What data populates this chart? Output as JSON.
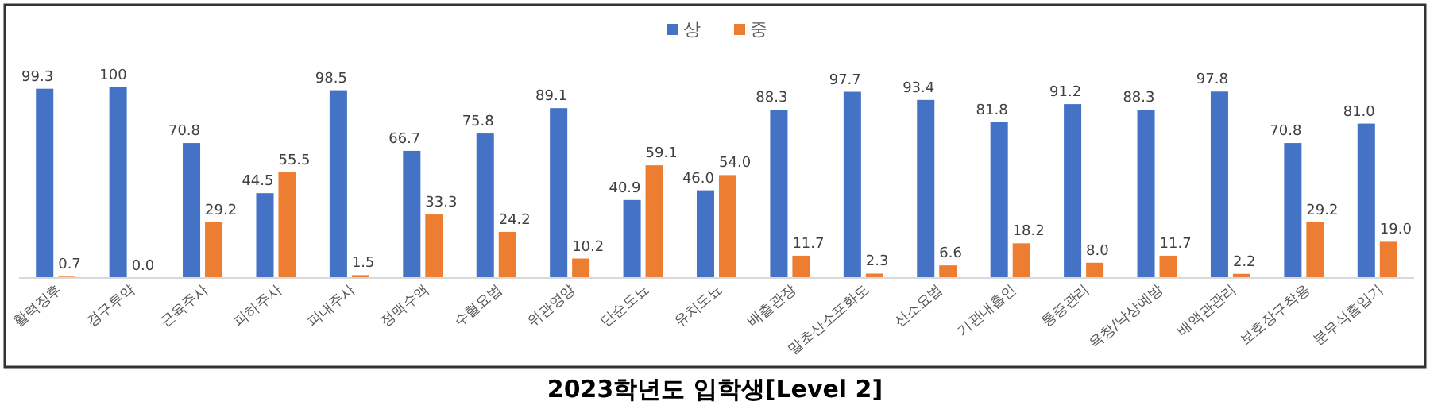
{
  "chart_data": {
    "type": "bar",
    "title": "2023학년도 입학생[Level 2]",
    "legend": "top",
    "grid": false,
    "categories": [
      "활력징후",
      "경구투약",
      "근육주사",
      "피하주사",
      "피내주사",
      "정맥수액",
      "수혈요법",
      "위관영양",
      "단순도뇨",
      "유치도뇨",
      "배출관장",
      "말초산소포화도",
      "산소요법",
      "기관내흡인",
      "통증관리",
      "욕창/낙상예방",
      "배액관관리",
      "보호장구착용",
      "분무식흡입기"
    ],
    "series": [
      {
        "name": "상",
        "color": "#4472c4",
        "values": [
          99.3,
          100,
          70.8,
          44.5,
          98.5,
          66.7,
          75.8,
          89.1,
          40.9,
          46.0,
          88.3,
          97.7,
          93.4,
          81.8,
          91.2,
          88.3,
          97.8,
          70.8,
          81.0
        ],
        "value_labels": [
          "99.3",
          "100",
          "70.8",
          "44.5",
          "98.5",
          "66.7",
          "75.8",
          "89.1",
          "40.9",
          "46.0",
          "88.3",
          "97.7",
          "93.4",
          "81.8",
          "91.2",
          "88.3",
          "97.8",
          "70.8",
          "81.0"
        ]
      },
      {
        "name": "중",
        "color": "#ed7d31",
        "values": [
          0.7,
          0.0,
          29.2,
          55.5,
          1.5,
          33.3,
          24.2,
          10.2,
          59.1,
          54.0,
          11.7,
          2.3,
          6.6,
          18.2,
          8.0,
          11.7,
          2.2,
          29.2,
          19.0
        ],
        "value_labels": [
          "0.7",
          "0.0",
          "29.2",
          "55.5",
          "1.5",
          "33.3",
          "24.2",
          "10.2",
          "59.1",
          "54.0",
          "11.7",
          "2.3",
          "6.6",
          "18.2",
          "8.0",
          "11.7",
          "2.2",
          "29.2",
          "19.0"
        ]
      }
    ]
  }
}
